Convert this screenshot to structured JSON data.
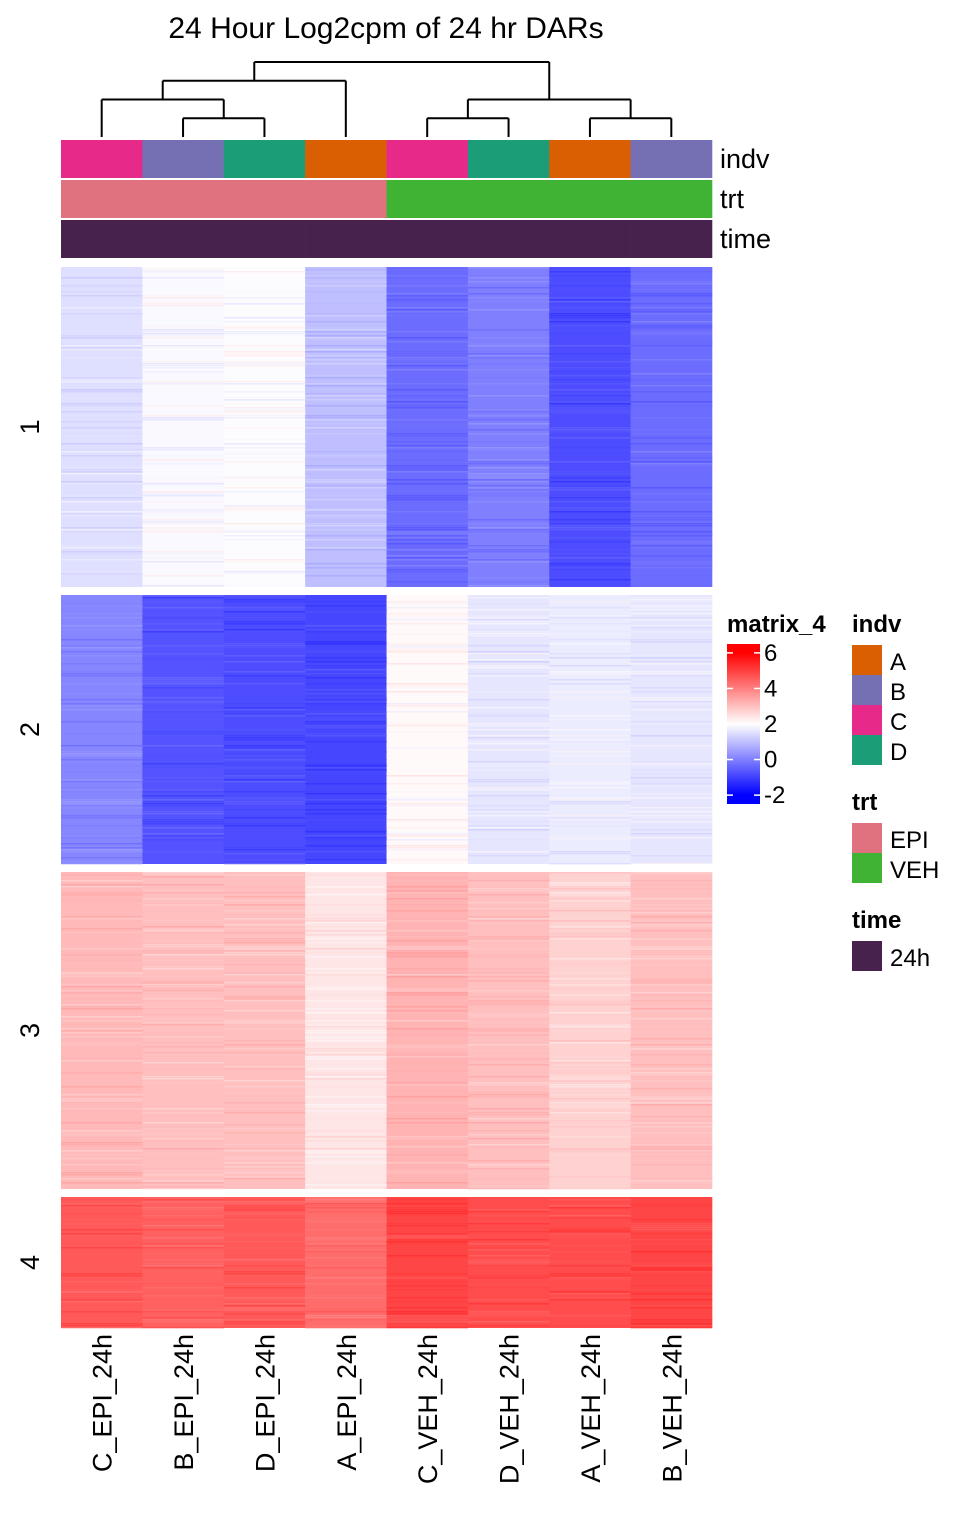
{
  "chart_data": {
    "type": "heatmap",
    "title": "24 Hour Log2cpm of 24 hr DARs",
    "columns": [
      "C_EPI_24h",
      "B_EPI_24h",
      "D_EPI_24h",
      "A_EPI_24h",
      "C_VEH_24h",
      "D_VEH_24h",
      "A_VEH_24h",
      "B_VEH_24h"
    ],
    "row_groups": [
      {
        "label": "1",
        "values": [
          1.5,
          1.9,
          1.95,
          1.0,
          -0.3,
          0.0,
          -0.8,
          -0.3
        ]
      },
      {
        "label": "2",
        "values": [
          0.1,
          -0.7,
          -0.8,
          -0.9,
          2.1,
          1.6,
          1.7,
          1.6
        ]
      },
      {
        "label": "3",
        "values": [
          3.1,
          3.0,
          3.0,
          2.4,
          3.2,
          3.0,
          2.7,
          3.0
        ]
      },
      {
        "label": "4",
        "values": [
          4.6,
          4.5,
          4.6,
          4.3,
          4.9,
          4.8,
          4.8,
          4.9
        ]
      }
    ],
    "annotations": [
      {
        "name": "indv",
        "values": [
          "C",
          "B",
          "D",
          "A",
          "C",
          "D",
          "A",
          "B"
        ]
      },
      {
        "name": "trt",
        "values": [
          "EPI",
          "EPI",
          "EPI",
          "EPI",
          "VEH",
          "VEH",
          "VEH",
          "VEH"
        ]
      },
      {
        "name": "time",
        "values": [
          "24h",
          "24h",
          "24h",
          "24h",
          "24h",
          "24h",
          "24h",
          "24h"
        ]
      }
    ],
    "colorbar": {
      "title": "matrix_4",
      "range": [
        -2.5,
        6.5
      ],
      "stops": [
        {
          "value": -2,
          "color": "#0000ff"
        },
        {
          "value": 2,
          "color": "#ffffff"
        },
        {
          "value": 6,
          "color": "#ff0000"
        }
      ],
      "ticks": [
        6,
        4,
        2,
        0,
        -2
      ]
    },
    "legends": [
      {
        "title": "indv",
        "items": [
          {
            "label": "A",
            "color": "#D95F02"
          },
          {
            "label": "B",
            "color": "#7570B3"
          },
          {
            "label": "C",
            "color": "#E7298A"
          },
          {
            "label": "D",
            "color": "#1B9E77"
          }
        ]
      },
      {
        "title": "trt",
        "items": [
          {
            "label": "EPI",
            "color": "#E0727F"
          },
          {
            "label": "VEH",
            "color": "#41B334"
          }
        ]
      },
      {
        "title": "time",
        "items": [
          {
            "label": "24h",
            "color": "#46224D"
          }
        ]
      }
    ],
    "dendrogram": "((C_EPI_24h,(B_EPI_24h,D_EPI_24h)),A_EPI_24h),((C_VEH_24h,D_VEH_24h),(A_VEH_24h,B_VEH_24h))"
  }
}
